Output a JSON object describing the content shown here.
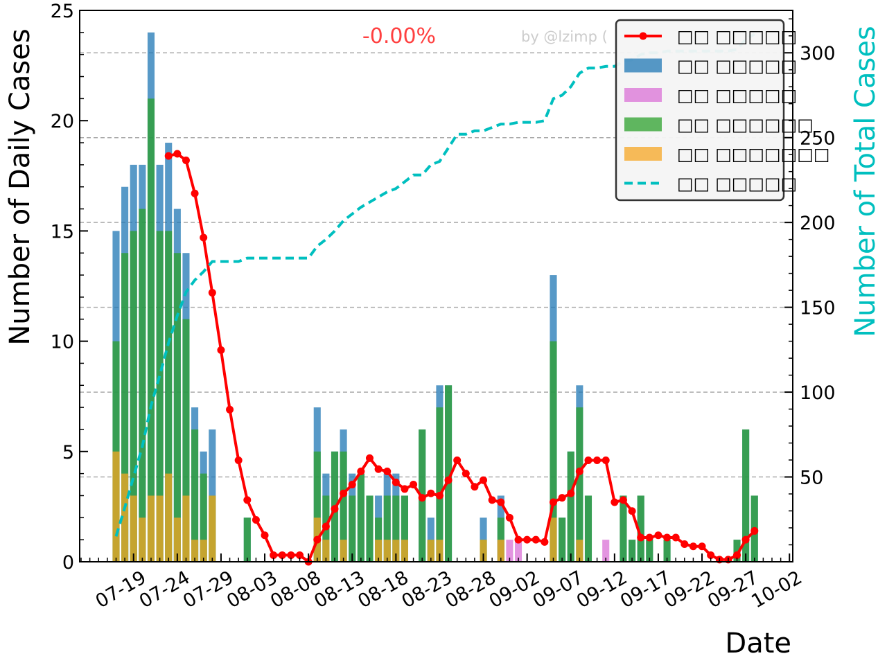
{
  "chart_data": {
    "type": "bar",
    "x_dates": [
      "07-17",
      "07-18",
      "07-19",
      "07-20",
      "07-21",
      "07-22",
      "07-23",
      "07-24",
      "07-25",
      "07-26",
      "07-27",
      "07-28",
      "07-29",
      "07-30",
      "07-31",
      "08-01",
      "08-02",
      "08-03",
      "08-04",
      "08-05",
      "08-06",
      "08-07",
      "08-08",
      "08-09",
      "08-10",
      "08-11",
      "08-12",
      "08-13",
      "08-14",
      "08-15",
      "08-16",
      "08-17",
      "08-18",
      "08-19",
      "08-20",
      "08-21",
      "08-22",
      "08-23",
      "08-24",
      "08-25",
      "08-26",
      "08-27",
      "08-28",
      "08-29",
      "08-30",
      "08-31",
      "09-01",
      "09-02",
      "09-03",
      "09-04",
      "09-05",
      "09-06",
      "09-07",
      "09-08",
      "09-09",
      "09-10",
      "09-11",
      "09-12",
      "09-13",
      "09-14",
      "09-15",
      "09-16",
      "09-17",
      "09-18",
      "09-19",
      "09-20",
      "09-21",
      "09-22",
      "09-23",
      "09-24",
      "09-25",
      "09-26",
      "09-27",
      "09-28",
      "09-29"
    ],
    "xtick_labels": [
      "07-19",
      "07-24",
      "07-29",
      "08-03",
      "08-08",
      "08-13",
      "08-18",
      "08-23",
      "08-28",
      "09-02",
      "09-07",
      "09-12",
      "09-17",
      "09-22",
      "09-27",
      "10-02"
    ],
    "xlabel": "Date",
    "ylabel": "Number of Daily Cases",
    "y2label": "Number of Total Cases",
    "ylim": [
      0,
      25
    ],
    "y2lim": [
      0,
      325
    ],
    "yticks": [
      0,
      5,
      10,
      15,
      20,
      25
    ],
    "y2ticks": [
      50,
      100,
      150,
      200,
      250,
      300
    ],
    "annotation": "-0.00%",
    "watermark": "by @lzimp (",
    "legend_position": "top-right",
    "series": [
      {
        "name": "□□ □□□□□",
        "type": "line",
        "color": "#ff0000",
        "values": [
          null,
          null,
          null,
          null,
          null,
          null,
          18.4,
          18.5,
          18.2,
          16.7,
          14.7,
          12.2,
          9.6,
          6.9,
          4.6,
          2.8,
          1.9,
          1.2,
          0.3,
          0.3,
          0.3,
          0.3,
          0.0,
          1.0,
          1.6,
          2.4,
          3.1,
          3.5,
          4.1,
          4.7,
          4.2,
          4.1,
          3.6,
          3.3,
          3.5,
          2.9,
          3.1,
          3.0,
          3.7,
          4.6,
          4.0,
          3.4,
          3.7,
          2.8,
          2.7,
          2.0,
          1.0,
          1.0,
          1.0,
          0.9,
          2.7,
          2.9,
          3.1,
          4.1,
          4.6,
          4.6,
          4.6,
          2.7,
          2.8,
          2.3,
          1.1,
          1.1,
          1.2,
          1.1,
          1.1,
          0.8,
          0.7,
          0.7,
          0.3,
          0.1,
          0.1,
          0.3,
          1.0,
          1.4,
          null
        ]
      },
      {
        "name": "□□ □□□□□",
        "type": "bar",
        "color": "#1f77b4",
        "values": [
          15,
          17,
          18,
          18,
          24,
          18,
          19,
          16,
          14,
          7,
          5,
          6,
          0,
          0,
          0,
          2,
          0,
          0,
          0,
          0,
          0,
          0,
          0,
          7,
          4,
          5,
          6,
          4,
          4,
          3,
          3,
          4,
          4,
          3,
          0,
          6,
          2,
          8,
          8,
          0,
          0,
          0,
          2,
          0,
          3,
          0,
          0,
          0,
          0,
          0,
          13,
          2,
          5,
          8,
          3,
          0,
          0,
          0,
          3,
          1,
          3,
          1,
          0,
          1,
          0,
          0,
          0,
          0,
          0,
          0,
          0,
          1,
          6,
          3,
          0
        ]
      },
      {
        "name": "□□ □□□□□",
        "type": "bar",
        "color": "#da70d6",
        "values": [
          0,
          0,
          0,
          0,
          0,
          0,
          0,
          0,
          0,
          0,
          0,
          0,
          0,
          0,
          0,
          0,
          0,
          0,
          0,
          0,
          0,
          0,
          0,
          0,
          0,
          0,
          0,
          0,
          0,
          0,
          0,
          0,
          0,
          0,
          0,
          0,
          0,
          0,
          0,
          0,
          0,
          0,
          0,
          0,
          1,
          1,
          1,
          0,
          0,
          0,
          0,
          0,
          0,
          0,
          0,
          0,
          1,
          0,
          0,
          0,
          0,
          0,
          0,
          0,
          0,
          0,
          0,
          0,
          0,
          0,
          0,
          0,
          0,
          0,
          0
        ]
      },
      {
        "name": "□□ □□□□□□",
        "type": "bar",
        "color": "#2ca02c",
        "values": [
          10,
          14,
          15,
          16,
          21,
          15,
          15,
          14,
          11,
          6,
          4,
          3,
          0,
          0,
          0,
          2,
          0,
          0,
          0,
          0,
          0,
          0,
          0,
          5,
          3,
          5,
          5,
          3,
          4,
          3,
          2,
          3,
          3,
          3,
          0,
          6,
          1,
          7,
          8,
          0,
          0,
          0,
          1,
          0,
          2,
          0,
          0,
          0,
          0,
          0,
          10,
          2,
          5,
          7,
          3,
          0,
          0,
          0,
          3,
          1,
          3,
          1,
          0,
          1,
          0,
          0,
          0,
          0,
          0,
          0,
          0,
          1,
          6,
          3,
          0
        ]
      },
      {
        "name": "□□ □□□□□□□",
        "type": "bar",
        "color": "#f5a623",
        "values": [
          5,
          4,
          3,
          2,
          3,
          3,
          4,
          2,
          3,
          1,
          1,
          3,
          0,
          0,
          0,
          0,
          0,
          0,
          0,
          0,
          0,
          0,
          0,
          2,
          1,
          0,
          1,
          0,
          0,
          0,
          1,
          1,
          1,
          1,
          0,
          0,
          1,
          1,
          0,
          0,
          0,
          0,
          1,
          0,
          1,
          0,
          0,
          0,
          0,
          0,
          2,
          0,
          0,
          1,
          0,
          0,
          0,
          0,
          0,
          0,
          0,
          0,
          0,
          0,
          0,
          0,
          0,
          0,
          0,
          0,
          0,
          0,
          0,
          0,
          0
        ]
      },
      {
        "name": "□□ □□□□□",
        "type": "line",
        "dashed": true,
        "color": "#00bfbf",
        "values": [
          15,
          32,
          50,
          68,
          92,
          110,
          129,
          145,
          159,
          166,
          171,
          177,
          177,
          177,
          177,
          179,
          179,
          179,
          179,
          179,
          179,
          179,
          179,
          186,
          190,
          195,
          201,
          205,
          209,
          212,
          215,
          218,
          220,
          224,
          228,
          228,
          234,
          236,
          244,
          252,
          252,
          254,
          254,
          256,
          258,
          258,
          259,
          259,
          259,
          260,
          273,
          275,
          280,
          288,
          291,
          291,
          292,
          292,
          295,
          296,
          299,
          300,
          300,
          301,
          301,
          301,
          301,
          301,
          301,
          301,
          301,
          302,
          308,
          311,
          null
        ]
      }
    ]
  }
}
